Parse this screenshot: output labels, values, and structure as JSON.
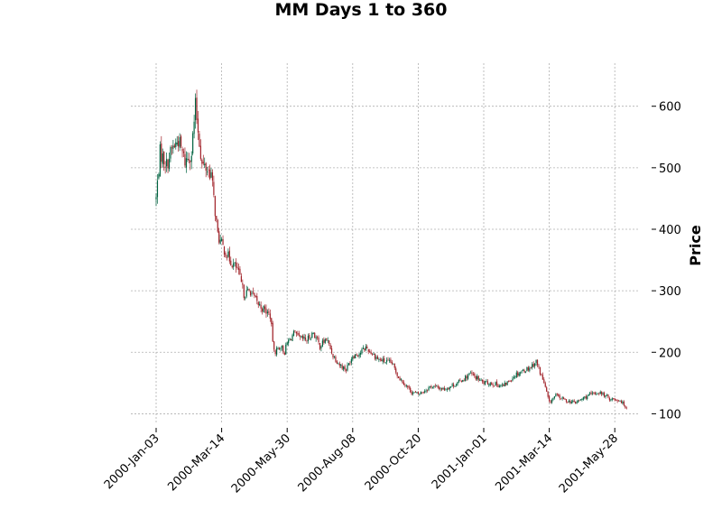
{
  "chart_data": {
    "type": "candlestick",
    "title": "MM Days 1 to 360",
    "ylabel": "Price",
    "xlabel": "",
    "ylim": [
      83,
      670
    ],
    "y_ticks": [
      100,
      200,
      300,
      400,
      500,
      600
    ],
    "x_ticks": [
      "2000-Jan-03",
      "2000-Mar-14",
      "2000-May-30",
      "2000-Aug-08",
      "2000-Oct-20",
      "2001-Jan-01",
      "2001-Mar-14",
      "2001-May-28"
    ],
    "x_tick_index": [
      0,
      50,
      100,
      150,
      200,
      250,
      300,
      350
    ],
    "n_days": 360,
    "price_path": {
      "days": [
        0,
        3,
        8,
        12,
        17,
        22,
        27,
        30,
        35,
        38,
        42,
        45,
        47,
        50,
        55,
        58,
        62,
        67,
        72,
        77,
        82,
        87,
        90,
        95,
        98,
        100,
        105,
        110,
        115,
        120,
        125,
        130,
        135,
        140,
        145,
        150,
        155,
        160,
        170,
        180,
        185,
        190,
        195,
        200,
        205,
        210,
        220,
        230,
        240,
        250,
        255,
        265,
        275,
        285,
        290,
        296,
        300,
        305,
        312,
        320,
        330,
        338,
        346,
        354,
        359
      ],
      "closes": [
        450,
        525,
        505,
        530,
        545,
        510,
        525,
        600,
        505,
        500,
        490,
        430,
        390,
        375,
        355,
        345,
        335,
        295,
        300,
        280,
        270,
        260,
        200,
        210,
        200,
        215,
        230,
        222,
        220,
        232,
        210,
        222,
        195,
        180,
        172,
        195,
        198,
        208,
        188,
        182,
        160,
        148,
        135,
        132,
        138,
        145,
        140,
        150,
        165,
        150,
        150,
        145,
        165,
        175,
        185,
        150,
        118,
        130,
        122,
        118,
        130,
        135,
        125,
        122,
        110
      ]
    },
    "bull_color": "#006340",
    "bear_color": "#a02128",
    "grid": true,
    "y_axis_side": "right",
    "style": "candles"
  }
}
